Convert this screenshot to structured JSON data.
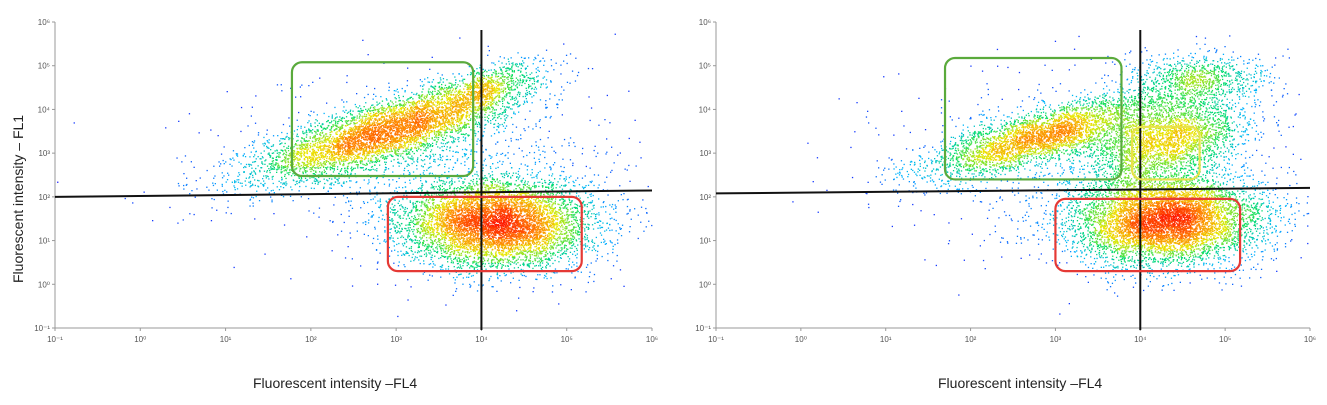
{
  "chart_data": [
    {
      "type": "scatter",
      "title": "",
      "xlabel": "Fluorescent intensity –FL4",
      "ylabel": "Fluorescent intensity – FL1",
      "x_scale": "log",
      "y_scale": "log",
      "xlim": [
        0.1,
        1000000
      ],
      "ylim": [
        0.1,
        1000000
      ],
      "x_ticks": [
        "10⁻¹",
        "10⁰",
        "10¹",
        "10²",
        "10³",
        "10⁴",
        "10⁵",
        "10⁶"
      ],
      "y_ticks": [
        "10⁻¹",
        "10⁰",
        "10¹",
        "10²",
        "10³",
        "10⁴",
        "10⁵",
        "10⁶"
      ],
      "colormap": [
        "#1a1aff",
        "#00b4ff",
        "#00dd66",
        "#e8e800",
        "#ff8800",
        "#ff1a00"
      ],
      "quadrant_lines": {
        "vertical_x": 10000,
        "horizontal": [
          [
            0.1,
            100
          ],
          [
            1000000,
            140
          ]
        ]
      },
      "populations": [
        {
          "center": [
            700,
            3000
          ],
          "spread": [
            0.75,
            0.35
          ],
          "slope": 0.55,
          "count": 5000
        },
        {
          "center": [
            10000,
            30000
          ],
          "spread": [
            0.35,
            0.25
          ],
          "slope": 0.6,
          "count": 800
        },
        {
          "center": [
            15000,
            25
          ],
          "spread": [
            0.55,
            0.5
          ],
          "slope": 0.0,
          "count": 6500
        },
        {
          "center": [
            3000,
            500
          ],
          "spread": [
            1.2,
            1.0
          ],
          "slope": 0.0,
          "count": 900
        }
      ],
      "gates": [
        {
          "color": "#5aaa3c",
          "x": [
            60,
            8000
          ],
          "y": [
            300,
            120000
          ]
        },
        {
          "color": "#e53935",
          "x": [
            800,
            150000
          ],
          "y": [
            2,
            100
          ]
        }
      ]
    },
    {
      "type": "scatter",
      "title": "",
      "xlabel": "Fluorescent intensity –FL4",
      "ylabel": "",
      "x_scale": "log",
      "y_scale": "log",
      "xlim": [
        0.1,
        1000000
      ],
      "ylim": [
        0.1,
        1000000
      ],
      "x_ticks": [
        "10⁻¹",
        "10⁰",
        "10¹",
        "10²",
        "10³",
        "10⁴",
        "10⁵",
        "10⁶"
      ],
      "y_ticks": [
        "10⁻¹",
        "10⁰",
        "10¹",
        "10²",
        "10³",
        "10⁴",
        "10⁵",
        "10⁶"
      ],
      "colormap": [
        "#1a1aff",
        "#00b4ff",
        "#00dd66",
        "#e8e800",
        "#ff8800",
        "#ff1a00"
      ],
      "quadrant_lines": {
        "vertical_x": 10000,
        "horizontal": [
          [
            0.1,
            120
          ],
          [
            1000000,
            160
          ]
        ]
      },
      "populations": [
        {
          "center": [
            700,
            2500
          ],
          "spread": [
            0.7,
            0.3
          ],
          "slope": 0.5,
          "count": 3500
        },
        {
          "center": [
            20000,
            2000
          ],
          "spread": [
            0.45,
            0.45
          ],
          "slope": 0.4,
          "count": 2500
        },
        {
          "center": [
            20000,
            30
          ],
          "spread": [
            0.55,
            0.5
          ],
          "slope": 0.0,
          "count": 6500
        },
        {
          "center": [
            50000,
            50000
          ],
          "spread": [
            0.4,
            0.3
          ],
          "slope": 0.0,
          "count": 900
        },
        {
          "center": [
            3000,
            500
          ],
          "spread": [
            1.2,
            1.0
          ],
          "slope": 0.0,
          "count": 900
        }
      ],
      "gates": [
        {
          "color": "#5aaa3c",
          "x": [
            50,
            6000
          ],
          "y": [
            250,
            150000
          ]
        },
        {
          "color": "#e8e24a",
          "x": [
            8000,
            50000
          ],
          "y": [
            250,
            4000
          ]
        },
        {
          "color": "#e53935",
          "x": [
            1000,
            150000
          ],
          "y": [
            2,
            90
          ]
        }
      ]
    }
  ]
}
